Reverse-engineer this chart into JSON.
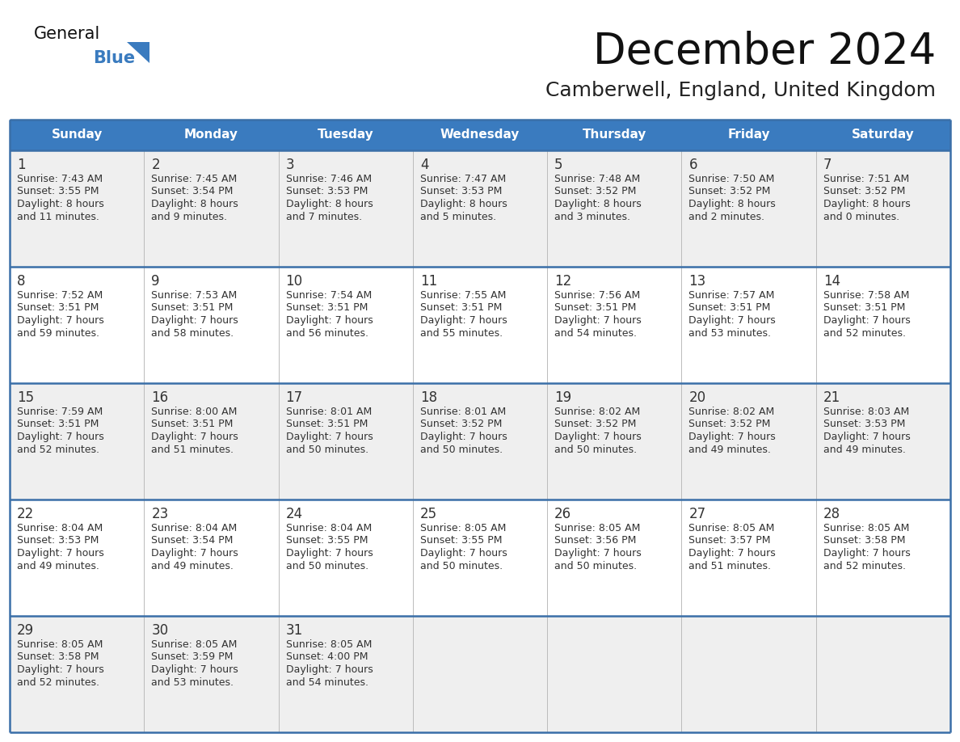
{
  "title": "December 2024",
  "subtitle": "Camberwell, England, United Kingdom",
  "header_bg": "#3a7bbf",
  "header_text": "#FFFFFF",
  "day_names": [
    "Sunday",
    "Monday",
    "Tuesday",
    "Wednesday",
    "Thursday",
    "Friday",
    "Saturday"
  ],
  "row_bg_light": "#efefef",
  "row_bg_white": "#FFFFFF",
  "separator_color": "#3a6fa8",
  "cell_line_color": "#bbbbbb",
  "title_color": "#111111",
  "subtitle_color": "#222222",
  "text_color": "#333333",
  "calendar_data": [
    [
      {
        "day": 1,
        "sunrise": "7:43 AM",
        "sunset": "3:55 PM",
        "daylight_line1": "Daylight: 8 hours",
        "daylight_line2": "and 11 minutes."
      },
      {
        "day": 2,
        "sunrise": "7:45 AM",
        "sunset": "3:54 PM",
        "daylight_line1": "Daylight: 8 hours",
        "daylight_line2": "and 9 minutes."
      },
      {
        "day": 3,
        "sunrise": "7:46 AM",
        "sunset": "3:53 PM",
        "daylight_line1": "Daylight: 8 hours",
        "daylight_line2": "and 7 minutes."
      },
      {
        "day": 4,
        "sunrise": "7:47 AM",
        "sunset": "3:53 PM",
        "daylight_line1": "Daylight: 8 hours",
        "daylight_line2": "and 5 minutes."
      },
      {
        "day": 5,
        "sunrise": "7:48 AM",
        "sunset": "3:52 PM",
        "daylight_line1": "Daylight: 8 hours",
        "daylight_line2": "and 3 minutes."
      },
      {
        "day": 6,
        "sunrise": "7:50 AM",
        "sunset": "3:52 PM",
        "daylight_line1": "Daylight: 8 hours",
        "daylight_line2": "and 2 minutes."
      },
      {
        "day": 7,
        "sunrise": "7:51 AM",
        "sunset": "3:52 PM",
        "daylight_line1": "Daylight: 8 hours",
        "daylight_line2": "and 0 minutes."
      }
    ],
    [
      {
        "day": 8,
        "sunrise": "7:52 AM",
        "sunset": "3:51 PM",
        "daylight_line1": "Daylight: 7 hours",
        "daylight_line2": "and 59 minutes."
      },
      {
        "day": 9,
        "sunrise": "7:53 AM",
        "sunset": "3:51 PM",
        "daylight_line1": "Daylight: 7 hours",
        "daylight_line2": "and 58 minutes."
      },
      {
        "day": 10,
        "sunrise": "7:54 AM",
        "sunset": "3:51 PM",
        "daylight_line1": "Daylight: 7 hours",
        "daylight_line2": "and 56 minutes."
      },
      {
        "day": 11,
        "sunrise": "7:55 AM",
        "sunset": "3:51 PM",
        "daylight_line1": "Daylight: 7 hours",
        "daylight_line2": "and 55 minutes."
      },
      {
        "day": 12,
        "sunrise": "7:56 AM",
        "sunset": "3:51 PM",
        "daylight_line1": "Daylight: 7 hours",
        "daylight_line2": "and 54 minutes."
      },
      {
        "day": 13,
        "sunrise": "7:57 AM",
        "sunset": "3:51 PM",
        "daylight_line1": "Daylight: 7 hours",
        "daylight_line2": "and 53 minutes."
      },
      {
        "day": 14,
        "sunrise": "7:58 AM",
        "sunset": "3:51 PM",
        "daylight_line1": "Daylight: 7 hours",
        "daylight_line2": "and 52 minutes."
      }
    ],
    [
      {
        "day": 15,
        "sunrise": "7:59 AM",
        "sunset": "3:51 PM",
        "daylight_line1": "Daylight: 7 hours",
        "daylight_line2": "and 52 minutes."
      },
      {
        "day": 16,
        "sunrise": "8:00 AM",
        "sunset": "3:51 PM",
        "daylight_line1": "Daylight: 7 hours",
        "daylight_line2": "and 51 minutes."
      },
      {
        "day": 17,
        "sunrise": "8:01 AM",
        "sunset": "3:51 PM",
        "daylight_line1": "Daylight: 7 hours",
        "daylight_line2": "and 50 minutes."
      },
      {
        "day": 18,
        "sunrise": "8:01 AM",
        "sunset": "3:52 PM",
        "daylight_line1": "Daylight: 7 hours",
        "daylight_line2": "and 50 minutes."
      },
      {
        "day": 19,
        "sunrise": "8:02 AM",
        "sunset": "3:52 PM",
        "daylight_line1": "Daylight: 7 hours",
        "daylight_line2": "and 50 minutes."
      },
      {
        "day": 20,
        "sunrise": "8:02 AM",
        "sunset": "3:52 PM",
        "daylight_line1": "Daylight: 7 hours",
        "daylight_line2": "and 49 minutes."
      },
      {
        "day": 21,
        "sunrise": "8:03 AM",
        "sunset": "3:53 PM",
        "daylight_line1": "Daylight: 7 hours",
        "daylight_line2": "and 49 minutes."
      }
    ],
    [
      {
        "day": 22,
        "sunrise": "8:04 AM",
        "sunset": "3:53 PM",
        "daylight_line1": "Daylight: 7 hours",
        "daylight_line2": "and 49 minutes."
      },
      {
        "day": 23,
        "sunrise": "8:04 AM",
        "sunset": "3:54 PM",
        "daylight_line1": "Daylight: 7 hours",
        "daylight_line2": "and 49 minutes."
      },
      {
        "day": 24,
        "sunrise": "8:04 AM",
        "sunset": "3:55 PM",
        "daylight_line1": "Daylight: 7 hours",
        "daylight_line2": "and 50 minutes."
      },
      {
        "day": 25,
        "sunrise": "8:05 AM",
        "sunset": "3:55 PM",
        "daylight_line1": "Daylight: 7 hours",
        "daylight_line2": "and 50 minutes."
      },
      {
        "day": 26,
        "sunrise": "8:05 AM",
        "sunset": "3:56 PM",
        "daylight_line1": "Daylight: 7 hours",
        "daylight_line2": "and 50 minutes."
      },
      {
        "day": 27,
        "sunrise": "8:05 AM",
        "sunset": "3:57 PM",
        "daylight_line1": "Daylight: 7 hours",
        "daylight_line2": "and 51 minutes."
      },
      {
        "day": 28,
        "sunrise": "8:05 AM",
        "sunset": "3:58 PM",
        "daylight_line1": "Daylight: 7 hours",
        "daylight_line2": "and 52 minutes."
      }
    ],
    [
      {
        "day": 29,
        "sunrise": "8:05 AM",
        "sunset": "3:58 PM",
        "daylight_line1": "Daylight: 7 hours",
        "daylight_line2": "and 52 minutes."
      },
      {
        "day": 30,
        "sunrise": "8:05 AM",
        "sunset": "3:59 PM",
        "daylight_line1": "Daylight: 7 hours",
        "daylight_line2": "and 53 minutes."
      },
      {
        "day": 31,
        "sunrise": "8:05 AM",
        "sunset": "4:00 PM",
        "daylight_line1": "Daylight: 7 hours",
        "daylight_line2": "and 54 minutes."
      },
      null,
      null,
      null,
      null
    ]
  ]
}
